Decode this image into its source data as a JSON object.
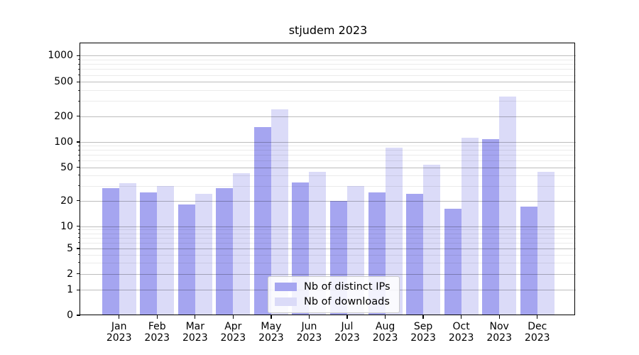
{
  "title": "stjudem 2023",
  "chart_data": {
    "type": "bar",
    "title": "stjudem 2023",
    "categories": [
      "Jan",
      "Feb",
      "Mar",
      "Apr",
      "May",
      "Jun",
      "Jul",
      "Aug",
      "Sep",
      "Oct",
      "Nov",
      "Dec"
    ],
    "x_tick_year": "2023",
    "series": [
      {
        "name": "Nb of distinct IPs",
        "color": "#a5a5f0",
        "values": [
          28,
          25,
          18,
          28,
          150,
          33,
          20,
          25,
          24,
          16,
          107,
          17
        ]
      },
      {
        "name": "Nb of downloads",
        "color": "#dbdbf8",
        "values": [
          32,
          30,
          24,
          42,
          240,
          44,
          30,
          85,
          54,
          113,
          340,
          44
        ]
      }
    ],
    "yscale": "symlog",
    "ylim": [
      0,
      1400
    ],
    "y_ticks": [
      0,
      1,
      2,
      5,
      10,
      20,
      50,
      100,
      200,
      500,
      1000
    ],
    "y_minor_ticks": [
      3,
      4,
      6,
      7,
      8,
      9,
      30,
      40,
      60,
      70,
      80,
      90,
      300,
      400,
      600,
      700,
      800,
      900
    ],
    "grid": true,
    "legend_position": "lower center"
  }
}
